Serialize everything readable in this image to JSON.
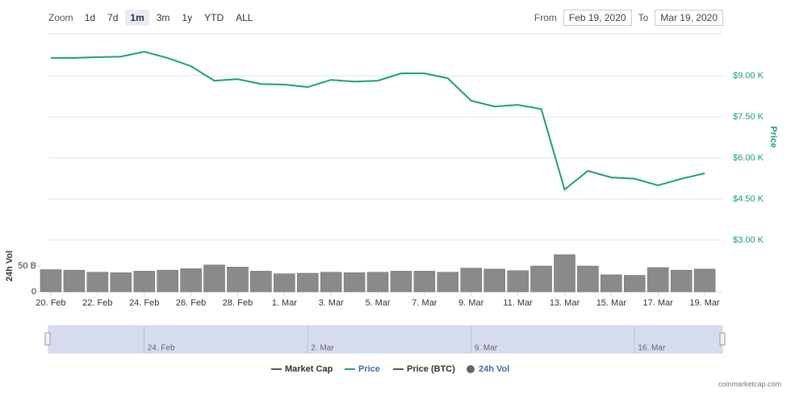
{
  "toolbar": {
    "zoom_label": "Zoom",
    "zoom_buttons": [
      "1d",
      "7d",
      "1m",
      "3m",
      "1y",
      "YTD",
      "ALL"
    ],
    "selected_zoom": "1m",
    "from_label": "From",
    "from": "Feb 19, 2020",
    "to_label": "To",
    "to": "Mar 19, 2020"
  },
  "chart_data": {
    "type": "line",
    "x": [
      "2020-02-20",
      "2020-02-21",
      "2020-02-22",
      "2020-02-23",
      "2020-02-24",
      "2020-02-25",
      "2020-02-26",
      "2020-02-27",
      "2020-02-28",
      "2020-02-29",
      "2020-03-01",
      "2020-03-02",
      "2020-03-03",
      "2020-03-04",
      "2020-03-05",
      "2020-03-06",
      "2020-03-07",
      "2020-03-08",
      "2020-03-09",
      "2020-03-10",
      "2020-03-11",
      "2020-03-12",
      "2020-03-13",
      "2020-03-14",
      "2020-03-15",
      "2020-03-16",
      "2020-03-17",
      "2020-03-18",
      "2020-03-19"
    ],
    "series": [
      {
        "name": "Price",
        "color": "#1aa078",
        "values": [
          9650,
          9650,
          9680,
          9700,
          9880,
          9650,
          9350,
          8820,
          8880,
          8700,
          8680,
          8590,
          8850,
          8790,
          8820,
          9090,
          9090,
          8910,
          8090,
          7880,
          7940,
          7790,
          4850,
          5530,
          5290,
          5240,
          5000,
          5240,
          5440
        ]
      }
    ],
    "xlim": [
      "2020-02-20",
      "2020-03-20"
    ],
    "xticks": [
      {
        "value": "2020-02-20",
        "label": "20. Feb"
      },
      {
        "value": "2020-02-22",
        "label": "22. Feb"
      },
      {
        "value": "2020-02-24",
        "label": "24. Feb"
      },
      {
        "value": "2020-02-26",
        "label": "26. Feb"
      },
      {
        "value": "2020-02-28",
        "label": "28. Feb"
      },
      {
        "value": "2020-03-01",
        "label": "1. Mar"
      },
      {
        "value": "2020-03-03",
        "label": "3. Mar"
      },
      {
        "value": "2020-03-05",
        "label": "5. Mar"
      },
      {
        "value": "2020-03-07",
        "label": "7. Mar"
      },
      {
        "value": "2020-03-09",
        "label": "9. Mar"
      },
      {
        "value": "2020-03-11",
        "label": "11. Mar"
      },
      {
        "value": "2020-03-13",
        "label": "13. Mar"
      },
      {
        "value": "2020-03-15",
        "label": "15. Mar"
      },
      {
        "value": "2020-03-17",
        "label": "17. Mar"
      },
      {
        "value": "2020-03-19",
        "label": "19. Mar"
      }
    ],
    "ylim": [
      3000,
      10530
    ],
    "yticks": [
      {
        "value": 3000,
        "label": "$3.00 K"
      },
      {
        "value": 4500,
        "label": "$4.50 K"
      },
      {
        "value": 6000,
        "label": "$6.00 K"
      },
      {
        "value": 7500,
        "label": "$7.50 K"
      },
      {
        "value": 9000,
        "label": "$9.00 K"
      }
    ],
    "y_axis_label": "Price",
    "grid": true,
    "volume": {
      "type": "bar",
      "name": "24h Vol",
      "axis_label": "24h Vol",
      "color": "#8a8a8a",
      "values": [
        43,
        42,
        38,
        37,
        40,
        42,
        45,
        52,
        48,
        40,
        35,
        36,
        38,
        37,
        38,
        40,
        40,
        38,
        46,
        44,
        41,
        50,
        72,
        50,
        33,
        32,
        47,
        42,
        44
      ],
      "ylim": [
        0,
        100
      ],
      "yticks": [
        0,
        {
          "value": 50,
          "label": "50 B"
        }
      ]
    }
  },
  "navigator": {
    "ticks": [
      {
        "value": "2020-02-24",
        "label": "24. Feb"
      },
      {
        "value": "2020-03-02",
        "label": "2. Mar"
      },
      {
        "value": "2020-03-09",
        "label": "9. Mar"
      },
      {
        "value": "2020-03-16",
        "label": "16. Mar"
      }
    ]
  },
  "legend": [
    {
      "name": "Market Cap",
      "color": "#555555",
      "marker": "line",
      "active": false
    },
    {
      "name": "Price",
      "color": "#1aa078",
      "marker": "line",
      "active": true
    },
    {
      "name": "Price (BTC)",
      "color": "#555555",
      "marker": "line",
      "active": false
    },
    {
      "name": "24h Vol",
      "color": "#666666",
      "marker": "circle",
      "active": true
    }
  ],
  "credit": "coinmarketcap.com"
}
